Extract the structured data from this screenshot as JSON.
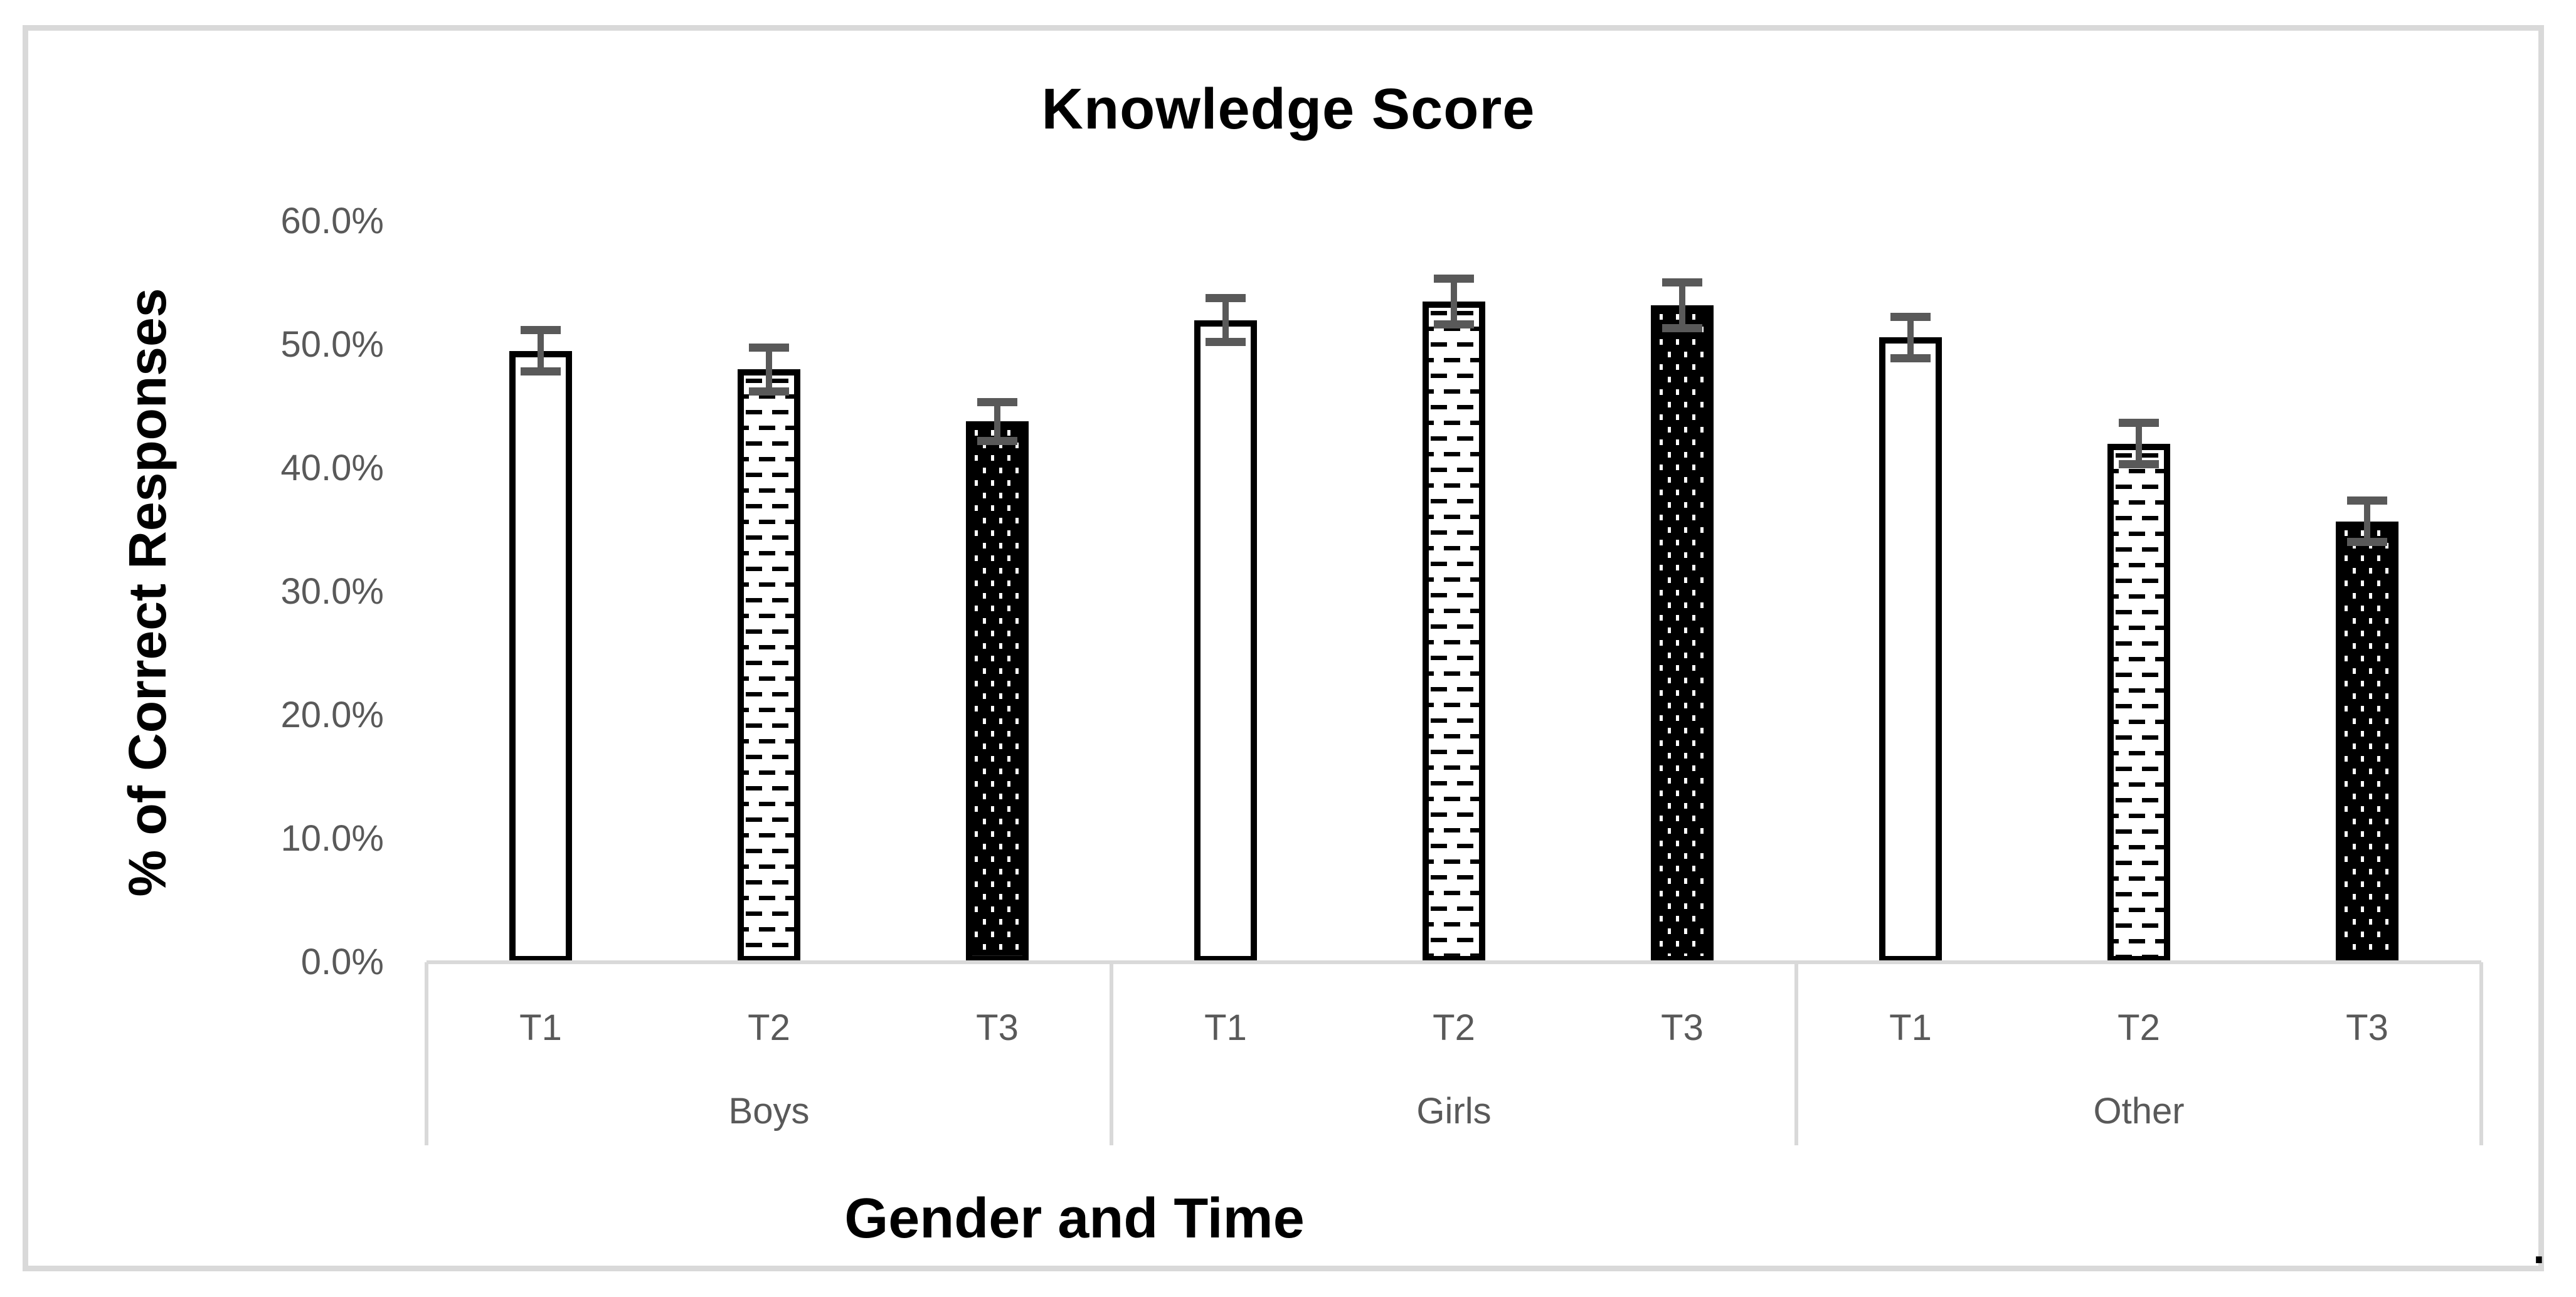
{
  "title": "Knowledge Score",
  "y_axis": {
    "title": "% of Correct Responses",
    "ticks": [
      {
        "label": "60.0%",
        "value": 60
      },
      {
        "label": "50.0%",
        "value": 50
      },
      {
        "label": "40.0%",
        "value": 40
      },
      {
        "label": "30.0%",
        "value": 30
      },
      {
        "label": "20.0%",
        "value": 20
      },
      {
        "label": "10.0%",
        "value": 10
      },
      {
        "label": "0.0%",
        "value": 0
      }
    ]
  },
  "x_axis": {
    "title": "Gender and Time",
    "groups": [
      "Boys",
      "Girls",
      "Other"
    ],
    "times": [
      "T1",
      "T2",
      "T3"
    ]
  },
  "annotations": {
    "trailing_period": "."
  },
  "colors": {
    "label_gray": "#595959",
    "line_gray": "#d9d9d9",
    "bar_black": "#000000",
    "error_bar_gray": "#595959"
  },
  "chart_data": {
    "type": "bar",
    "title": "Knowledge Score",
    "xlabel": "Gender and Time",
    "ylabel": "% of Correct Responses",
    "ylim": [
      0,
      60
    ],
    "ytick_values_percent": [
      60,
      50,
      40,
      30,
      20,
      10,
      0
    ],
    "grid": "none",
    "legend": "none",
    "error_bars": true,
    "categories": [
      "T1",
      "T2",
      "T3"
    ],
    "groups": [
      "Boys",
      "Girls",
      "Other"
    ],
    "series": [
      {
        "name": "Boys",
        "values": [
          49.5,
          48.0,
          43.8
        ],
        "errors": [
          2.0,
          2.1,
          1.9
        ]
      },
      {
        "name": "Girls",
        "values": [
          52.0,
          53.5,
          53.2
        ],
        "errors": [
          2.1,
          2.2,
          2.2
        ]
      },
      {
        "name": "Other",
        "values": [
          50.6,
          42.0,
          35.7
        ],
        "errors": [
          2.0,
          2.0,
          2.0
        ]
      }
    ],
    "bar_styles_by_time": {
      "T1": "solid-white-black-outline",
      "T2": "white-with-black-horizontal-dashes",
      "T3": "black-with-white-dots"
    }
  }
}
